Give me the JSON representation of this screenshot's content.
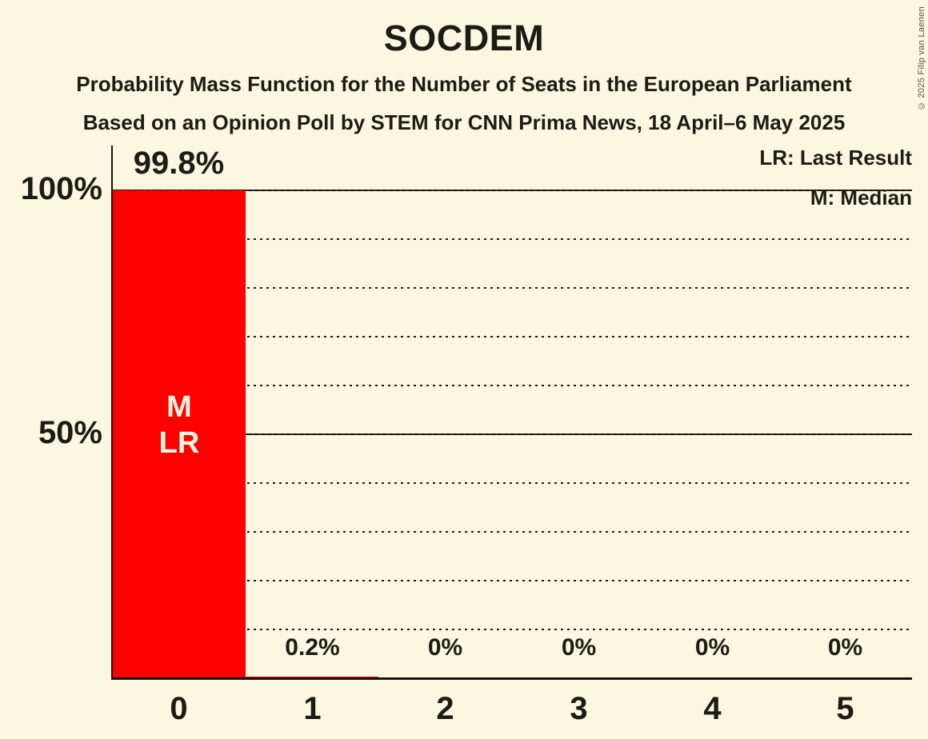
{
  "header": {
    "title": "SOCDEM",
    "subtitle1": "Probability Mass Function for the Number of Seats in the European Parliament",
    "subtitle2": "Based on an Opinion Poll by STEM for CNN Prima News, 18 April–6 May 2025"
  },
  "legend": {
    "lr": "LR: Last Result",
    "m": "M: Median"
  },
  "copyright": "© 2025 Filip van Laenen",
  "chart_data": {
    "type": "bar",
    "title": "SOCDEM",
    "categories": [
      "0",
      "1",
      "2",
      "3",
      "4",
      "5"
    ],
    "values": [
      99.8,
      0.2,
      0,
      0,
      0,
      0
    ],
    "value_labels": [
      "99.8%",
      "0.2%",
      "0%",
      "0%",
      "0%",
      "0%"
    ],
    "bar0_annotation": [
      "M",
      "LR"
    ],
    "annotation_meaning": {
      "M": "Median",
      "LR": "Last Result"
    },
    "y_axis_labels": [
      "100%",
      "50%"
    ],
    "ylim": [
      0,
      100
    ],
    "gridlines": {
      "dotted_pct": [
        10,
        20,
        30,
        40,
        60,
        70,
        80,
        90
      ],
      "solid_pct": [
        50,
        100
      ]
    },
    "legend_position": "top-right",
    "colors": {
      "bar": "#ff0000",
      "background": "#fbf7e1",
      "text": "#1c1c16",
      "bar_annotation_text": "#fbf7e1"
    }
  }
}
